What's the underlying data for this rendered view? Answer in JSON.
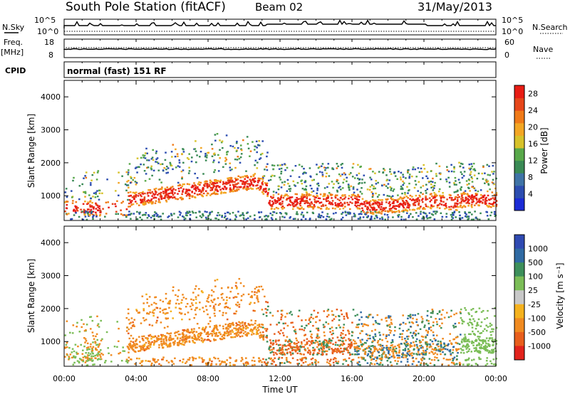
{
  "header": {
    "station": "South Pole Station (fitACF)",
    "beam": "Beam 02",
    "date": "31/May/2013"
  },
  "panels": {
    "nsky": {
      "left_label": "N.Sky",
      "left_tick_top": "10^5",
      "left_tick_bot": "10^0",
      "right_label": "N.Search",
      "right_tick_top": "10^5",
      "right_tick_bot": "10^0"
    },
    "freq": {
      "left_label_1": "Freq.",
      "left_label_2": "[MHz]",
      "left_tick_top": "18",
      "left_tick_bot": "8",
      "right_label": "Nave",
      "right_tick_top": "60",
      "right_tick_bot": "0"
    },
    "cpid": {
      "label": "CPID",
      "text": "normal (fast) 151 RF"
    }
  },
  "colors": {
    "power": [
      "#1b2bd6",
      "#2c4db0",
      "#3f73a6",
      "#3a8a55",
      "#58a84a",
      "#d7c22a",
      "#f3a623",
      "#f07a18",
      "#e6461a",
      "#e81c14"
    ],
    "velocity": [
      "#2f4ab2",
      "#2f6aa3",
      "#3d8f5b",
      "#7bbd57",
      "#c8c8c8",
      "#f5b21e",
      "#f08a20",
      "#e85e1c",
      "#e2231c"
    ]
  },
  "chart_data": [
    {
      "type": "heatmap",
      "name": "power-panel",
      "ylabel": "Slant Range [km]",
      "yticks": [
        "1000",
        "2000",
        "3000",
        "4000"
      ],
      "ylim": [
        250,
        4500
      ],
      "xticks": [
        "00:00",
        "04:00",
        "08:00",
        "12:00",
        "16:00",
        "20:00",
        "00:00"
      ],
      "colorbar": {
        "label": "Power [dB]",
        "ticks": [
          "4",
          "8",
          "12",
          "16",
          "20",
          "24",
          "28"
        ]
      }
    },
    {
      "type": "heatmap",
      "name": "velocity-panel",
      "ylabel": "Slant Range [km]",
      "yticks": [
        "1000",
        "2000",
        "3000",
        "4000"
      ],
      "ylim": [
        250,
        4500
      ],
      "xticks": [
        "00:00",
        "04:00",
        "08:00",
        "12:00",
        "16:00",
        "20:00",
        "00:00"
      ],
      "xlabel": "Time UT",
      "colorbar": {
        "label": "Velocity [m s⁻¹]",
        "ticks": [
          "1000",
          "500",
          "100",
          "25",
          "-25",
          "-100",
          "-500",
          "-1000"
        ]
      }
    }
  ]
}
